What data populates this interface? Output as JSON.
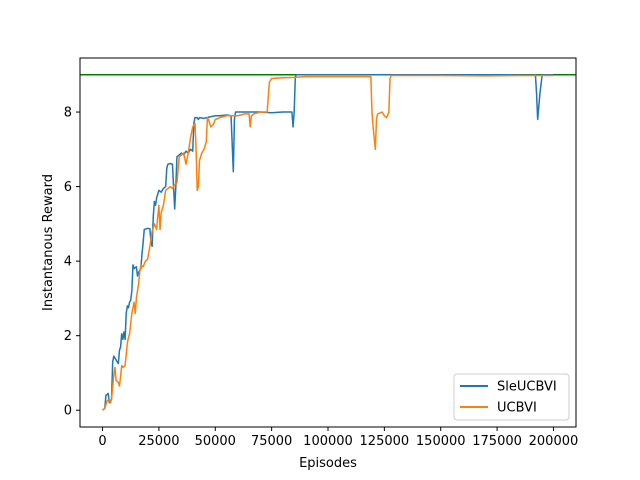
{
  "chart_data": {
    "type": "line",
    "title": "",
    "xlabel": "Episodes",
    "ylabel": "Instantanous Reward",
    "xlim": [
      -10000,
      210000
    ],
    "ylim": [
      -0.45,
      9.45
    ],
    "x_ticks": [
      0,
      25000,
      50000,
      75000,
      100000,
      125000,
      150000,
      175000,
      200000
    ],
    "x_tick_labels": [
      "0",
      "25000",
      "50000",
      "75000",
      "100000",
      "125000",
      "150000",
      "175000",
      "200000"
    ],
    "y_ticks": [
      0,
      2,
      4,
      6,
      8
    ],
    "y_tick_labels": [
      "0",
      "2",
      "4",
      "6",
      "8"
    ],
    "grid": false,
    "legend_position": "lower-right",
    "reference_line": {
      "y": 9.0,
      "color": "#008000"
    },
    "series": [
      {
        "name": "SleUCBVI",
        "color": "#1f77b4",
        "points": [
          [
            0,
            0
          ],
          [
            1000,
            0.05
          ],
          [
            1500,
            0.4
          ],
          [
            2500,
            0.45
          ],
          [
            3000,
            0.2
          ],
          [
            4000,
            0.3
          ],
          [
            4500,
            1.3
          ],
          [
            5000,
            1.45
          ],
          [
            6000,
            1.35
          ],
          [
            7000,
            1.25
          ],
          [
            7500,
            1.6
          ],
          [
            8000,
            1.7
          ],
          [
            8500,
            2.05
          ],
          [
            9000,
            1.9
          ],
          [
            9500,
            2.1
          ],
          [
            10000,
            1.9
          ],
          [
            10500,
            2.6
          ],
          [
            11000,
            2.8
          ],
          [
            11500,
            2.75
          ],
          [
            12000,
            2.9
          ],
          [
            12500,
            2.95
          ],
          [
            13000,
            3.2
          ],
          [
            13500,
            3.9
          ],
          [
            14000,
            3.8
          ],
          [
            15000,
            3.85
          ],
          [
            15500,
            3.6
          ],
          [
            16000,
            3.7
          ],
          [
            17000,
            3.8
          ],
          [
            17500,
            4.2
          ],
          [
            18000,
            4.5
          ],
          [
            18500,
            4.85
          ],
          [
            20000,
            4.88
          ],
          [
            21000,
            4.87
          ],
          [
            21500,
            4.5
          ],
          [
            22000,
            4.4
          ],
          [
            22500,
            5.2
          ],
          [
            23000,
            5.6
          ],
          [
            23500,
            5.5
          ],
          [
            24000,
            5.7
          ],
          [
            25000,
            5.9
          ],
          [
            26000,
            5.85
          ],
          [
            27000,
            5.95
          ],
          [
            28000,
            6.0
          ],
          [
            28500,
            6.5
          ],
          [
            29000,
            6.6
          ],
          [
            30000,
            6.62
          ],
          [
            31000,
            6.6
          ],
          [
            31500,
            6.0
          ],
          [
            32000,
            5.4
          ],
          [
            32500,
            6.0
          ],
          [
            33000,
            6.8
          ],
          [
            34000,
            6.85
          ],
          [
            35000,
            6.9
          ],
          [
            36000,
            6.85
          ],
          [
            37000,
            6.95
          ],
          [
            38000,
            6.9
          ],
          [
            39000,
            7.0
          ],
          [
            40000,
            6.95
          ],
          [
            40500,
            7.7
          ],
          [
            41000,
            7.85
          ],
          [
            42000,
            7.85
          ],
          [
            42500,
            7.8
          ],
          [
            43000,
            7.85
          ],
          [
            45000,
            7.83
          ],
          [
            47000,
            7.86
          ],
          [
            50000,
            7.9
          ],
          [
            52000,
            7.9
          ],
          [
            55000,
            7.92
          ],
          [
            57000,
            7.9
          ],
          [
            58000,
            6.4
          ],
          [
            58500,
            7.8
          ],
          [
            59000,
            8.0
          ],
          [
            60000,
            8.0
          ],
          [
            65000,
            8.0
          ],
          [
            70000,
            8.0
          ],
          [
            75000,
            7.98
          ],
          [
            80000,
            8.0
          ],
          [
            83000,
            8.0
          ],
          [
            84000,
            8.0
          ],
          [
            84500,
            7.6
          ],
          [
            85000,
            8.0
          ],
          [
            85500,
            8.95
          ],
          [
            86000,
            9.0
          ],
          [
            90000,
            9.0
          ],
          [
            100000,
            9.0
          ],
          [
            110000,
            9.0
          ],
          [
            120000,
            9.0
          ],
          [
            130000,
            9.0
          ],
          [
            140000,
            9.0
          ],
          [
            150000,
            9.0
          ],
          [
            160000,
            9.0
          ],
          [
            170000,
            9.0
          ],
          [
            180000,
            9.0
          ],
          [
            190000,
            8.99
          ],
          [
            192000,
            9.0
          ],
          [
            192500,
            8.5
          ],
          [
            193000,
            7.8
          ],
          [
            194000,
            8.5
          ],
          [
            195000,
            9.0
          ],
          [
            200000,
            9.0
          ]
        ]
      },
      {
        "name": "UCBVI",
        "color": "#ff7f0e",
        "points": [
          [
            0,
            0
          ],
          [
            1000,
            0.05
          ],
          [
            2000,
            0.25
          ],
          [
            3000,
            0.3
          ],
          [
            3500,
            0.2
          ],
          [
            4000,
            0.3
          ],
          [
            5000,
            0.95
          ],
          [
            5500,
            1.15
          ],
          [
            6000,
            0.8
          ],
          [
            7000,
            0.75
          ],
          [
            7500,
            0.65
          ],
          [
            8000,
            0.9
          ],
          [
            8500,
            1.2
          ],
          [
            9000,
            1.15
          ],
          [
            10000,
            1.2
          ],
          [
            11000,
            1.8
          ],
          [
            11500,
            1.95
          ],
          [
            12000,
            2.05
          ],
          [
            13000,
            2.6
          ],
          [
            14000,
            2.9
          ],
          [
            14500,
            2.6
          ],
          [
            15000,
            3.0
          ],
          [
            16000,
            3.4
          ],
          [
            16500,
            3.7
          ],
          [
            17000,
            3.9
          ],
          [
            18000,
            3.85
          ],
          [
            19000,
            4.0
          ],
          [
            20000,
            4.05
          ],
          [
            21000,
            4.4
          ],
          [
            22000,
            4.8
          ],
          [
            23000,
            5.0
          ],
          [
            24000,
            4.85
          ],
          [
            24500,
            5.2
          ],
          [
            25000,
            5.5
          ],
          [
            25500,
            4.85
          ],
          [
            26000,
            5.3
          ],
          [
            27000,
            5.5
          ],
          [
            28000,
            5.9
          ],
          [
            29000,
            5.95
          ],
          [
            30000,
            6.0
          ],
          [
            31000,
            5.95
          ],
          [
            32000,
            6.05
          ],
          [
            33000,
            6.1
          ],
          [
            34000,
            6.8
          ],
          [
            35000,
            6.85
          ],
          [
            36000,
            6.9
          ],
          [
            37000,
            6.6
          ],
          [
            38000,
            6.9
          ],
          [
            39000,
            7.3
          ],
          [
            40000,
            7.6
          ],
          [
            41000,
            7.7
          ],
          [
            41500,
            7.0
          ],
          [
            42000,
            5.9
          ],
          [
            42500,
            6.0
          ],
          [
            43000,
            6.7
          ],
          [
            44000,
            6.9
          ],
          [
            45000,
            7.0
          ],
          [
            46000,
            7.2
          ],
          [
            46500,
            7.85
          ],
          [
            47000,
            7.8
          ],
          [
            48000,
            7.6
          ],
          [
            49000,
            7.65
          ],
          [
            50000,
            7.8
          ],
          [
            52000,
            7.85
          ],
          [
            55000,
            7.9
          ],
          [
            60000,
            7.9
          ],
          [
            63000,
            7.95
          ],
          [
            65000,
            7.95
          ],
          [
            65500,
            7.6
          ],
          [
            66000,
            7.9
          ],
          [
            67000,
            7.95
          ],
          [
            70000,
            8.0
          ],
          [
            72000,
            8.0
          ],
          [
            73000,
            8.0
          ],
          [
            74000,
            8.8
          ],
          [
            75000,
            8.9
          ],
          [
            80000,
            8.92
          ],
          [
            85000,
            8.93
          ],
          [
            90000,
            8.95
          ],
          [
            95000,
            8.95
          ],
          [
            100000,
            8.95
          ],
          [
            110000,
            8.95
          ],
          [
            118000,
            8.95
          ],
          [
            119000,
            8.95
          ],
          [
            119500,
            8.0
          ],
          [
            120000,
            7.6
          ],
          [
            121000,
            7.0
          ],
          [
            121500,
            7.8
          ],
          [
            122000,
            7.95
          ],
          [
            124000,
            8.0
          ],
          [
            125000,
            7.9
          ],
          [
            126000,
            7.85
          ],
          [
            127000,
            8.0
          ],
          [
            127500,
            8.9
          ],
          [
            128000,
            8.98
          ],
          [
            135000,
            8.98
          ],
          [
            150000,
            8.98
          ],
          [
            170000,
            8.97
          ],
          [
            185000,
            8.98
          ],
          [
            200000,
            8.98
          ]
        ]
      }
    ]
  }
}
